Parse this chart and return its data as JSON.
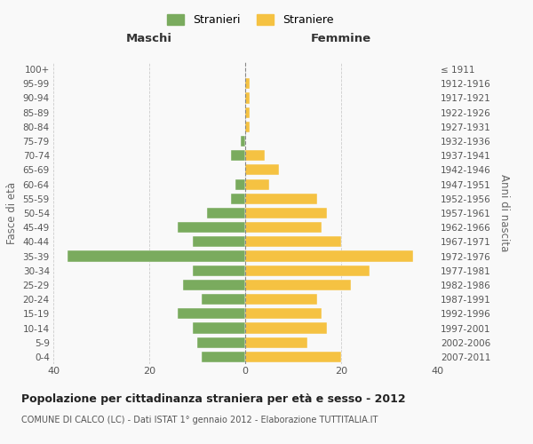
{
  "age_groups": [
    "0-4",
    "5-9",
    "10-14",
    "15-19",
    "20-24",
    "25-29",
    "30-34",
    "35-39",
    "40-44",
    "45-49",
    "50-54",
    "55-59",
    "60-64",
    "65-69",
    "70-74",
    "75-79",
    "80-84",
    "85-89",
    "90-94",
    "95-99",
    "100+"
  ],
  "birth_years": [
    "2007-2011",
    "2002-2006",
    "1997-2001",
    "1992-1996",
    "1987-1991",
    "1982-1986",
    "1977-1981",
    "1972-1976",
    "1967-1971",
    "1962-1966",
    "1957-1961",
    "1952-1956",
    "1947-1951",
    "1942-1946",
    "1937-1941",
    "1932-1936",
    "1927-1931",
    "1922-1926",
    "1917-1921",
    "1912-1916",
    "≤ 1911"
  ],
  "males": [
    9,
    10,
    11,
    14,
    9,
    13,
    11,
    37,
    11,
    14,
    8,
    3,
    2,
    0,
    3,
    1,
    0,
    0,
    0,
    0,
    0
  ],
  "females": [
    20,
    13,
    17,
    16,
    15,
    22,
    26,
    35,
    20,
    16,
    17,
    15,
    5,
    7,
    4,
    0,
    1,
    1,
    1,
    1,
    0
  ],
  "male_color": "#7aab5e",
  "female_color": "#f5c242",
  "title": "Popolazione per cittadinanza straniera per età e sesso - 2012",
  "subtitle": "COMUNE DI CALCO (LC) - Dati ISTAT 1° gennaio 2012 - Elaborazione TUTTITALIA.IT",
  "xlabel_left": "Maschi",
  "xlabel_right": "Femmine",
  "ylabel_left": "Fasce di età",
  "ylabel_right": "Anni di nascita",
  "legend_male": "Stranieri",
  "legend_female": "Straniere",
  "xlim": 40,
  "background_color": "#f9f9f9",
  "grid_color": "#cccccc"
}
